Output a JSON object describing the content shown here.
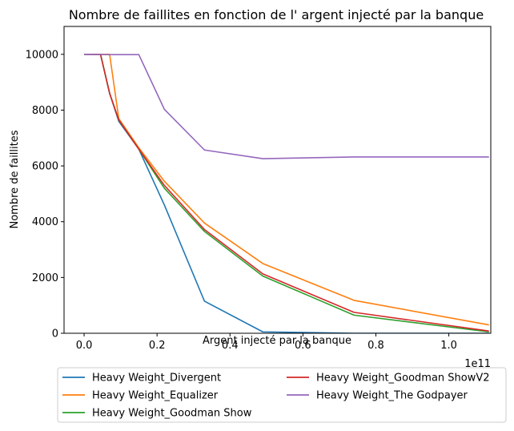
{
  "chart_data": {
    "type": "line",
    "title": "Nombre de faillites en fonction de l' argent injecté par la banque",
    "xlabel": "Argent injecté par la banque",
    "ylabel": "Nombre de faillites",
    "x_offset_label": "1e11",
    "xlim": [
      -0.055,
      1.115
    ],
    "ylim": [
      0,
      11000
    ],
    "xticks": [
      0.0,
      0.2,
      0.4,
      0.6,
      0.8,
      1.0
    ],
    "xtick_labels": [
      "0.0",
      "0.2",
      "0.4",
      "0.6",
      "0.8",
      "1.0"
    ],
    "yticks": [
      0,
      2000,
      4000,
      6000,
      8000,
      10000
    ],
    "ytick_labels": [
      "0",
      "2000",
      "4000",
      "6000",
      "8000",
      "10000"
    ],
    "grid": false,
    "legend_position": "below",
    "series": [
      {
        "name": "Heavy Weight_Divergent",
        "color": "#1f77b4",
        "x": [
          0.0,
          0.045,
          0.07,
          0.095,
          0.15,
          0.22,
          0.33,
          0.49,
          0.74,
          1.11
        ],
        "y": [
          10000,
          10000,
          8600,
          7600,
          6600,
          4600,
          1150,
          50,
          0,
          0
        ]
      },
      {
        "name": "Heavy Weight_Equalizer",
        "color": "#ff7f0e",
        "x": [
          0.0,
          0.07,
          0.095,
          0.15,
          0.22,
          0.33,
          0.49,
          0.74,
          1.11
        ],
        "y": [
          10000,
          10000,
          7700,
          6650,
          5450,
          3950,
          2500,
          1180,
          300
        ]
      },
      {
        "name": "Heavy Weight_Goodman Show",
        "color": "#2ca02c",
        "x": [
          0.0,
          0.045,
          0.07,
          0.095,
          0.15,
          0.22,
          0.33,
          0.49,
          0.74,
          1.11
        ],
        "y": [
          10000,
          10000,
          8600,
          7650,
          6600,
          5200,
          3650,
          2050,
          650,
          50
        ]
      },
      {
        "name": "Heavy Weight_Goodman ShowV2",
        "color": "#d62728",
        "x": [
          0.0,
          0.045,
          0.07,
          0.095,
          0.15,
          0.22,
          0.33,
          0.49,
          0.74,
          1.11
        ],
        "y": [
          10000,
          10000,
          8600,
          7650,
          6600,
          5300,
          3720,
          2130,
          750,
          80
        ]
      },
      {
        "name": "Heavy Weight_The Godpayer",
        "color": "#9467bd",
        "x": [
          0.0,
          0.075,
          0.15,
          0.22,
          0.33,
          0.49,
          0.74,
          1.11
        ],
        "y": [
          10000,
          9990,
          9990,
          8030,
          6570,
          6260,
          6320,
          6320
        ]
      }
    ]
  }
}
